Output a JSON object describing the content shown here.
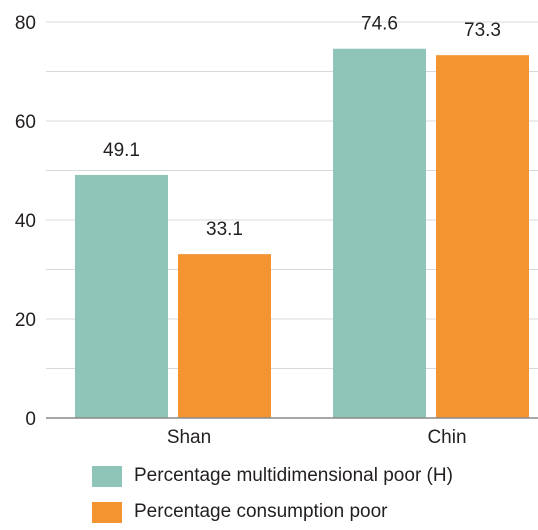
{
  "chart_data": {
    "type": "bar",
    "categories": [
      "Shan",
      "Chin"
    ],
    "series": [
      {
        "name": "Percentage multidimensional poor (H)",
        "values": [
          49.1,
          74.6
        ],
        "color": "#8ec5b8"
      },
      {
        "name": "Percentage consumption poor",
        "values": [
          33.1,
          73.3
        ],
        "color": "#f39430"
      }
    ],
    "ylim": [
      0,
      80
    ],
    "yticks": [
      0,
      20,
      40,
      60,
      80
    ],
    "grid": true,
    "legend_position": "bottom",
    "title": "",
    "xlabel": "",
    "ylabel": ""
  }
}
